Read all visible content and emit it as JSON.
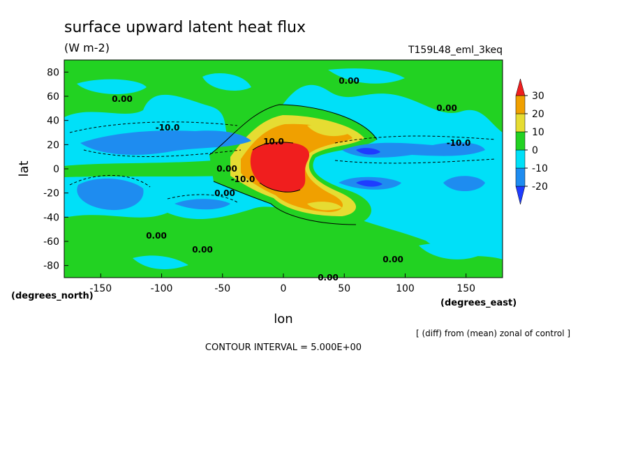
{
  "chart_data": {
    "type": "contour",
    "title": "surface upward latent heat flux",
    "subtitle": "(W m-2)",
    "run_label": "T159L48_eml_3keq",
    "x_label": "lon",
    "y_label": "lat",
    "x_unit_label": "(degrees_east)",
    "y_unit_label": "(degrees_north)",
    "note": "[ (diff) from (mean) zonal of control ]",
    "contour_interval_label": "CONTOUR INTERVAL = 5.000E+00",
    "xlim": [
      -180,
      180
    ],
    "ylim": [
      -90,
      90
    ],
    "xticks": [
      -150,
      -100,
      -50,
      0,
      50,
      100,
      150
    ],
    "yticks": [
      -80,
      -60,
      -40,
      -20,
      0,
      20,
      40,
      60,
      80
    ],
    "colorbar": {
      "levels": [
        -20,
        -10,
        0,
        10,
        20,
        30
      ],
      "colors": [
        "#1e3cff",
        "#1e8cf0",
        "#00e0f8",
        "#22d222",
        "#e6dc32",
        "#f0a000",
        "#f01e1e"
      ]
    },
    "contour_labels": [
      "0.00",
      "-10.0",
      "0.00",
      "0.00",
      "-10.0",
      "0.00",
      "10.0",
      "-10.0",
      "0.00",
      "0.00",
      "0.00",
      "0.00",
      "0.00"
    ]
  }
}
